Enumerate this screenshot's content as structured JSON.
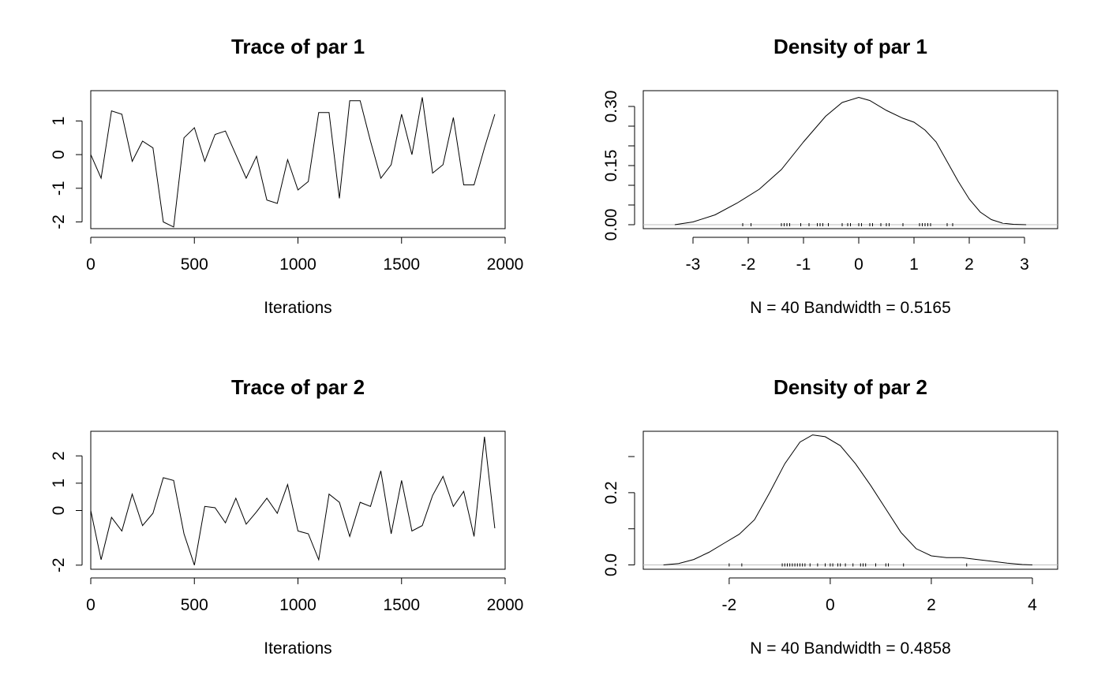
{
  "chart_data": [
    {
      "type": "line",
      "title": "Trace of par 1",
      "xlabel": "Iterations",
      "ylabel": "",
      "xlim": [
        0,
        2000
      ],
      "ylim": [
        -2.2,
        1.9
      ],
      "xticks": [
        0,
        500,
        1000,
        1500,
        2000
      ],
      "yticks": [
        -2,
        -1,
        0,
        1
      ],
      "x": [
        0,
        50,
        100,
        150,
        200,
        250,
        300,
        350,
        400,
        450,
        500,
        550,
        600,
        650,
        700,
        750,
        800,
        850,
        900,
        950,
        1000,
        1050,
        1100,
        1150,
        1200,
        1250,
        1300,
        1350,
        1400,
        1450,
        1500,
        1550,
        1600,
        1650,
        1700,
        1750,
        1800,
        1850,
        1900,
        1950
      ],
      "y": [
        0,
        -0.7,
        1.3,
        1.2,
        -0.2,
        0.4,
        0.2,
        -2.0,
        -2.15,
        0.5,
        0.8,
        -0.2,
        0.6,
        0.7,
        0.0,
        -0.7,
        -0.05,
        -1.35,
        -1.45,
        -0.15,
        -1.05,
        -0.8,
        1.25,
        1.25,
        -1.3,
        1.6,
        1.6,
        0.4,
        -0.7,
        -0.3,
        1.2,
        0.0,
        1.7,
        -0.55,
        -0.3,
        1.1,
        -0.9,
        -0.9,
        0.2,
        1.2
      ]
    },
    {
      "type": "area",
      "title": "Density of par 1",
      "xlabel": "N = 40   Bandwidth = 0.5165",
      "ylabel": "",
      "xlim": [
        -3.9,
        3.6
      ],
      "ylim": [
        -0.01,
        0.34
      ],
      "xticks": [
        -3,
        -2,
        -1,
        0,
        1,
        2,
        3
      ],
      "yticks": [
        0.0,
        0.15,
        0.3
      ],
      "ytick_labels": [
        "0.00",
        "0.15",
        "0.30"
      ],
      "x": [
        -3.33,
        -3.0,
        -2.6,
        -2.2,
        -1.8,
        -1.4,
        -1.0,
        -0.6,
        -0.3,
        0.0,
        0.2,
        0.5,
        0.8,
        1.0,
        1.2,
        1.4,
        1.6,
        1.8,
        2.0,
        2.2,
        2.4,
        2.6,
        2.8,
        3.03
      ],
      "y": [
        0.0,
        0.007,
        0.025,
        0.055,
        0.09,
        0.14,
        0.21,
        0.275,
        0.31,
        0.323,
        0.315,
        0.29,
        0.27,
        0.26,
        0.24,
        0.21,
        0.16,
        0.11,
        0.065,
        0.032,
        0.013,
        0.004,
        0.001,
        0.0
      ],
      "rug": [
        -2.1,
        -1.95,
        -1.4,
        -1.35,
        -1.3,
        -1.25,
        -1.05,
        -0.9,
        -0.75,
        -0.7,
        -0.65,
        -0.55,
        -0.3,
        -0.2,
        -0.15,
        0.0,
        0.05,
        0.2,
        0.25,
        0.4,
        0.5,
        0.55,
        0.8,
        1.1,
        1.15,
        1.2,
        1.2,
        1.25,
        1.3,
        1.6,
        1.7
      ]
    },
    {
      "type": "line",
      "title": "Trace of par 2",
      "xlabel": "Iterations",
      "ylabel": "",
      "xlim": [
        0,
        2000
      ],
      "ylim": [
        -2.15,
        2.9
      ],
      "xticks": [
        0,
        500,
        1000,
        1500,
        2000
      ],
      "yticks": [
        -2,
        0,
        1,
        2
      ],
      "x": [
        0,
        50,
        100,
        150,
        200,
        250,
        300,
        350,
        400,
        450,
        500,
        550,
        600,
        650,
        700,
        750,
        800,
        850,
        900,
        950,
        1000,
        1050,
        1100,
        1150,
        1200,
        1250,
        1300,
        1350,
        1400,
        1450,
        1500,
        1550,
        1600,
        1650,
        1700,
        1750,
        1800,
        1850,
        1900,
        1950
      ],
      "y": [
        0,
        -1.8,
        -0.25,
        -0.75,
        0.6,
        -0.55,
        -0.1,
        1.2,
        1.1,
        -0.85,
        -2.0,
        0.15,
        0.1,
        -0.45,
        0.45,
        -0.5,
        -0.05,
        0.45,
        -0.1,
        0.95,
        -0.75,
        -0.85,
        -1.8,
        0.6,
        0.3,
        -0.95,
        0.3,
        0.15,
        1.45,
        -0.85,
        1.1,
        -0.75,
        -0.55,
        0.55,
        1.25,
        0.15,
        0.7,
        -0.95,
        2.7,
        -0.65
      ]
    },
    {
      "type": "area",
      "title": "Density of par 2",
      "xlabel": "N = 40   Bandwidth = 0.4858",
      "ylabel": "",
      "xlim": [
        -3.7,
        4.5
      ],
      "ylim": [
        -0.012,
        0.37
      ],
      "xticks": [
        -2,
        0,
        2,
        4
      ],
      "yticks": [
        0.0,
        0.2
      ],
      "ytick_labels": [
        "0.0",
        "0.2"
      ],
      "x": [
        -3.3,
        -3.0,
        -2.7,
        -2.4,
        -2.1,
        -1.8,
        -1.5,
        -1.2,
        -0.9,
        -0.6,
        -0.35,
        -0.1,
        0.2,
        0.5,
        0.8,
        1.1,
        1.4,
        1.7,
        2.0,
        2.3,
        2.6,
        2.9,
        3.2,
        3.5,
        3.8,
        4.0
      ],
      "y": [
        0.0,
        0.004,
        0.015,
        0.035,
        0.06,
        0.085,
        0.125,
        0.2,
        0.28,
        0.34,
        0.36,
        0.355,
        0.33,
        0.28,
        0.22,
        0.155,
        0.09,
        0.045,
        0.025,
        0.02,
        0.02,
        0.015,
        0.01,
        0.005,
        0.001,
        0.0
      ],
      "rug": [
        -2.0,
        -1.75,
        -0.95,
        -0.9,
        -0.85,
        -0.8,
        -0.75,
        -0.7,
        -0.65,
        -0.6,
        -0.55,
        -0.5,
        -0.4,
        -0.25,
        -0.1,
        0.0,
        0.05,
        0.15,
        0.2,
        0.3,
        0.45,
        0.6,
        0.65,
        0.7,
        0.9,
        1.1,
        1.15,
        1.45,
        2.7
      ]
    }
  ]
}
